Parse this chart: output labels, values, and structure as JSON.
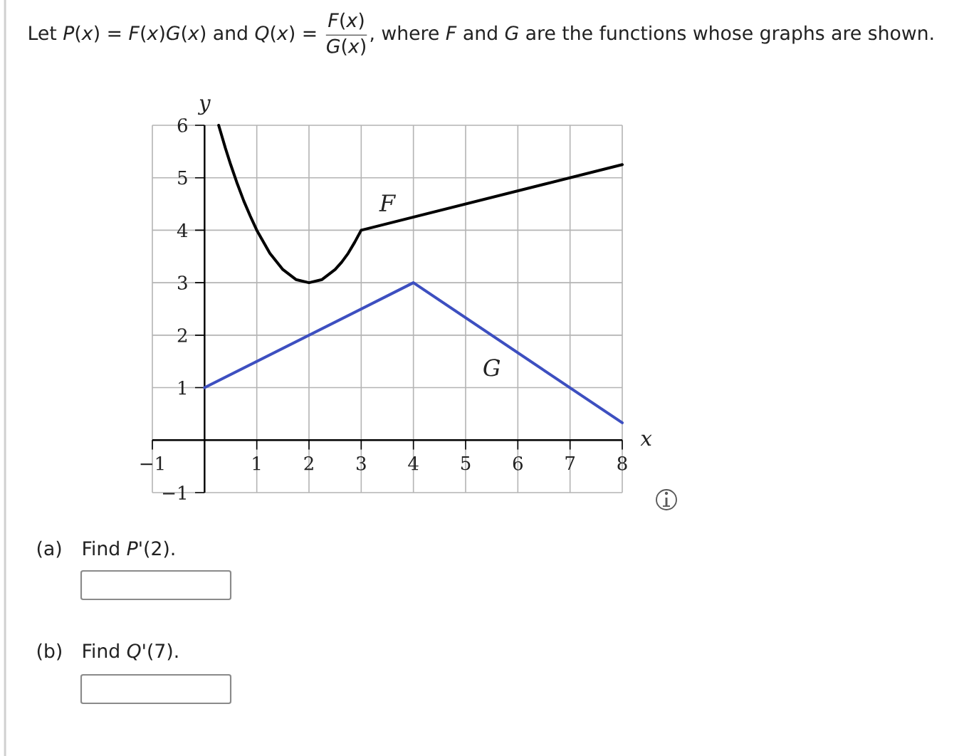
{
  "chart_data": {
    "type": "line",
    "title": "Let *P*(*x*) = *F*(*x*)*G*(*x*) and *Q*(*x*) =",
    "xlabel": "x",
    "ylabel": "y",
    "xlim": [
      -1,
      8
    ],
    "ylim": [
      -1,
      6
    ],
    "xticks": [
      {
        "value": -1,
        "label": "−1"
      },
      1,
      2,
      3,
      4,
      5,
      6,
      7,
      8
    ],
    "yticks": [
      {
        "value": -1,
        "label": "−1"
      },
      1,
      2,
      3,
      4,
      5,
      6
    ],
    "grid": true,
    "series": [
      {
        "name": "F",
        "color": "#000000",
        "x": [
          0.27,
          0.4,
          0.5,
          0.625,
          0.75,
          0.875,
          1,
          1.25,
          1.5,
          1.75,
          2,
          2.25,
          2.5,
          2.625,
          2.75,
          2.875,
          3,
          8
        ],
        "values": [
          6,
          5.56,
          5.25,
          4.89,
          4.56,
          4.27,
          4,
          3.56,
          3.25,
          3.06,
          3,
          3.06,
          3.25,
          3.39,
          3.56,
          3.77,
          4,
          5.25
        ]
      },
      {
        "name": "G",
        "color": "#3d4fc0",
        "x": [
          0,
          4,
          8
        ],
        "values": [
          1,
          3,
          0.33
        ]
      }
    ],
    "annotations": [
      "*F*(*x*)",
      "*G*(*x*)",
      ", where *F* and *G* are the functions whose graphs are shown.",
      "(a)",
      "Find *P*'(2).",
      "(b)",
      "Find *Q*'(7)."
    ]
  }
}
